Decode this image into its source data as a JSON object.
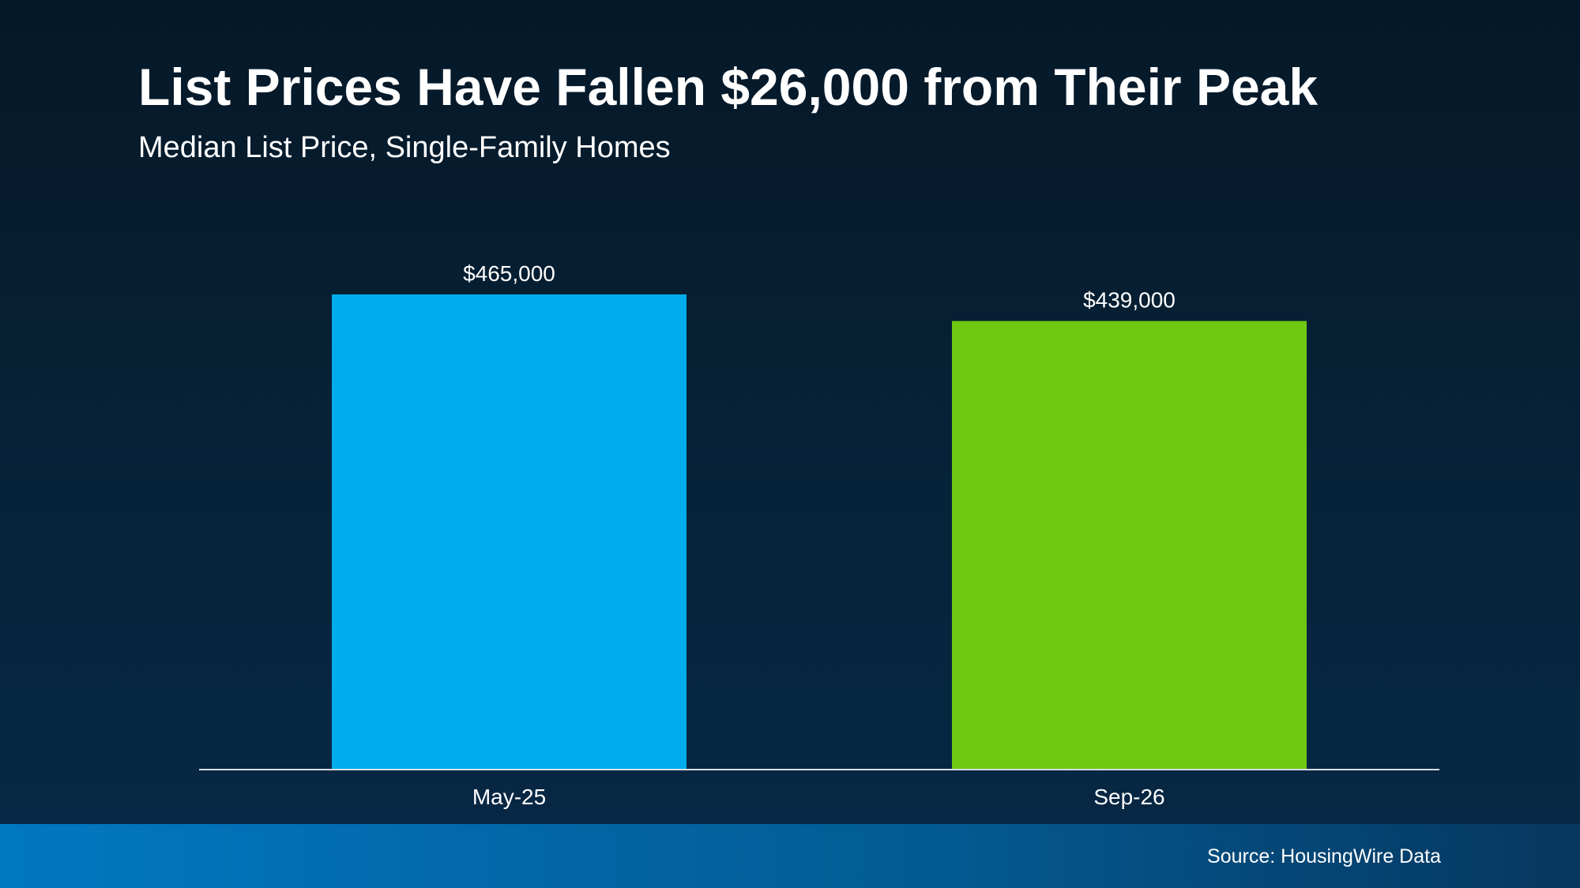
{
  "chart_data": {
    "type": "bar",
    "title": "List Prices Have Fallen $26,000 from Their Peak",
    "subtitle": "Median List Price, Single-Family Homes",
    "categories": [
      "May-25",
      "Sep-26"
    ],
    "values": [
      465000,
      439000
    ],
    "data_labels": [
      "$465,000",
      "$439,000"
    ],
    "colors": [
      "#00acec",
      "#6ec812"
    ],
    "ylim": [
      0,
      465000
    ],
    "grid": false,
    "source": "Source: HousingWire Data"
  }
}
